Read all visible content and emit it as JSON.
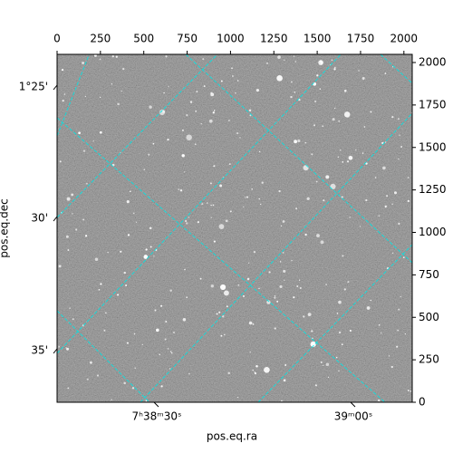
{
  "chart_data": {
    "type": "image",
    "x_label": "pos.eq.ra",
    "y_label": "pos.eq.dec",
    "xlim": [
      0,
      2048
    ],
    "ylim": [
      0,
      2048
    ],
    "xticks": [
      0,
      250,
      500,
      750,
      1000,
      1250,
      1500,
      1750,
      2000
    ],
    "yticks": [
      0,
      250,
      500,
      750,
      1000,
      1250,
      1500,
      1750,
      2000
    ],
    "ra_tick_labels": [
      "7ʰ38ᵐ30ˢ",
      "39ᵐ00ˢ"
    ],
    "dec_tick_labels": [
      "1°25'",
      "30'",
      "35'"
    ],
    "grid": true,
    "grid_color": "#00e5e5"
  }
}
